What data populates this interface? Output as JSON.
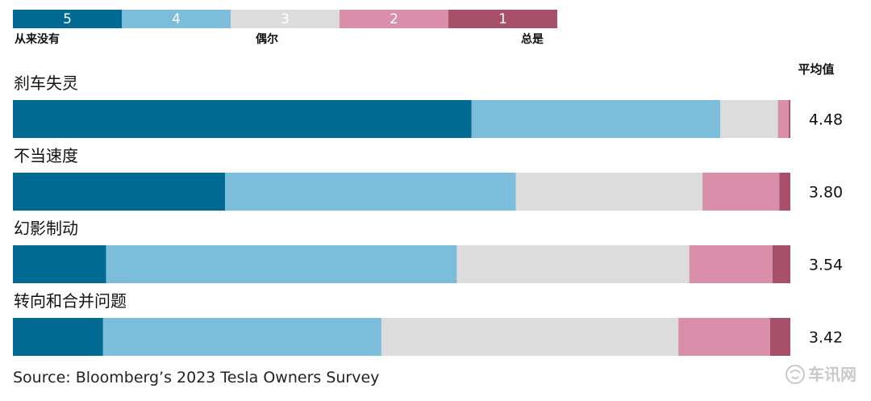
{
  "colors": {
    "5": "#006a93",
    "4": "#7bbddb",
    "3": "#dcdcdc",
    "2": "#d98ea9",
    "1": "#a8506a"
  },
  "legend": {
    "items": [
      "5",
      "4",
      "3",
      "2",
      "1"
    ],
    "captions": {
      "left": "从来没有",
      "middle": "偶尔",
      "right": "总是"
    }
  },
  "average_header": "平均值",
  "source": "Source: Bloomberg’s 2023 Tesla Owners Survey",
  "watermark": "车讯网",
  "chart_data": {
    "type": "bar",
    "orientation": "horizontal",
    "stacked": true,
    "percent": true,
    "categories": [
      "刹车失灵",
      "不当速度",
      "幻影制动",
      "转向和合并问题"
    ],
    "series": [
      {
        "name": "5",
        "values": [
          59.0,
          27.3,
          12.0,
          11.6
        ]
      },
      {
        "name": "4",
        "values": [
          32.0,
          37.4,
          45.1,
          35.8
        ]
      },
      {
        "name": "3",
        "values": [
          7.4,
          24.0,
          29.9,
          38.2
        ]
      },
      {
        "name": "2",
        "values": [
          1.4,
          9.9,
          10.7,
          11.8
        ]
      },
      {
        "name": "1",
        "values": [
          0.2,
          1.4,
          2.3,
          2.6
        ]
      }
    ],
    "averages": [
      "4.48",
      "3.80",
      "3.54",
      "3.42"
    ],
    "legend_position": "top"
  }
}
